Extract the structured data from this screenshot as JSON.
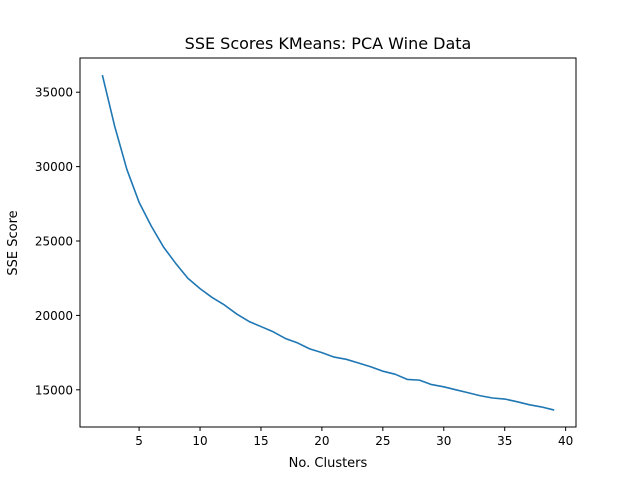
{
  "chart_data": {
    "type": "line",
    "title": "SSE Scores KMeans: PCA Wine Data",
    "xlabel": "No. Clusters",
    "ylabel": "SSE Score",
    "xlim": [
      0.15,
      40.85
    ],
    "ylim": [
      12500,
      37300
    ],
    "xticks": [
      5,
      10,
      15,
      20,
      25,
      30,
      35,
      40
    ],
    "yticks": [
      15000,
      20000,
      25000,
      30000,
      35000
    ],
    "grid": false,
    "line_color": "#1f77b4",
    "series": [
      {
        "x": [
          2,
          3,
          4,
          5,
          6,
          7,
          8,
          9,
          10,
          11,
          12,
          13,
          14,
          15,
          16,
          17,
          18,
          19,
          20,
          21,
          22,
          23,
          24,
          25,
          26,
          27,
          28,
          29,
          30,
          31,
          32,
          33,
          34,
          35,
          36,
          37,
          38,
          39
        ],
        "values": [
          36100,
          32700,
          29800,
          27600,
          26000,
          24600,
          23500,
          22500,
          21800,
          21200,
          20700,
          20100,
          19600,
          19250,
          18900,
          18450,
          18150,
          17750,
          17500,
          17200,
          17050,
          16800,
          16550,
          16250,
          16050,
          15700,
          15650,
          15350,
          15200,
          15000,
          14800,
          14600,
          14450,
          14380,
          14200,
          14000,
          13850,
          13650
        ]
      }
    ]
  }
}
